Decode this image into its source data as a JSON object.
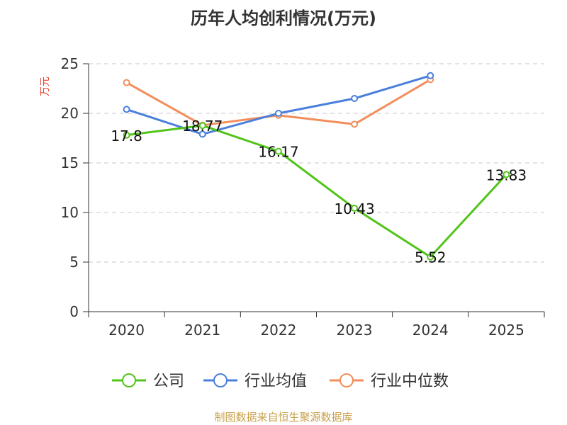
{
  "chart_data": {
    "type": "line",
    "title": "历年人均创利情况(万元)",
    "ylabel": "万元",
    "xlabel": "",
    "categories": [
      "2020",
      "2021",
      "2022",
      "2023",
      "2024",
      "2025"
    ],
    "ylim": [
      0,
      25
    ],
    "yticks": [
      0,
      5,
      10,
      15,
      20,
      25
    ],
    "grid": true,
    "legend_position": "bottom",
    "series": [
      {
        "name": "公司",
        "color": "#52c41a",
        "values": [
          17.8,
          18.77,
          16.17,
          10.43,
          5.52,
          13.83
        ],
        "labels": [
          "17.8",
          "18.77",
          "16.17",
          "10.43",
          "5.52",
          "13.83"
        ]
      },
      {
        "name": "行业均值",
        "color": "#4a7fdc",
        "values": [
          20.4,
          17.9,
          20.0,
          21.5,
          23.8,
          null
        ]
      },
      {
        "name": "行业中位数",
        "color": "#f28e5b",
        "values": [
          23.1,
          18.8,
          19.8,
          18.9,
          23.4,
          null
        ]
      }
    ]
  },
  "source_text": "制图数据来自恒生聚源数据库"
}
